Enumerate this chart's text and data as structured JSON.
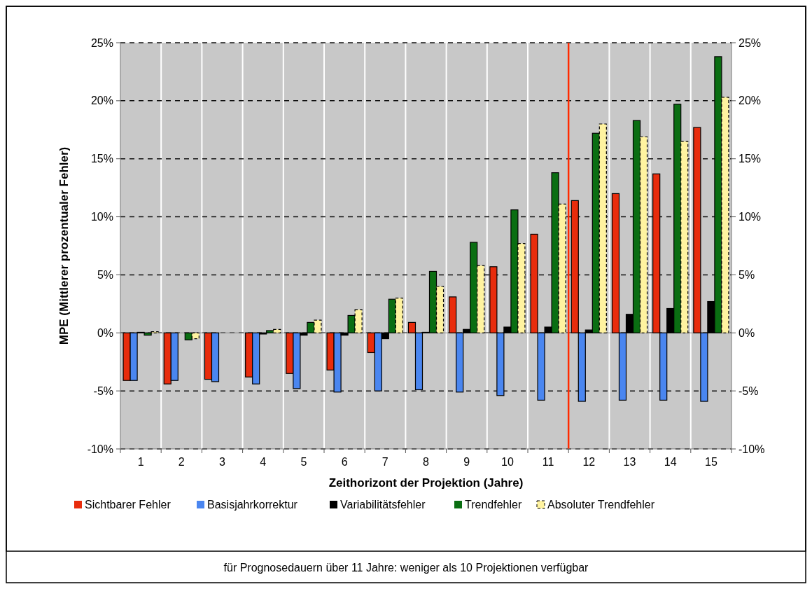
{
  "chart_data": {
    "type": "bar",
    "xlabel": "Zeithorizont der Projektion (Jahre)",
    "ylabel": "MPE (Mittlerer prozentualer Fehler)",
    "x": [
      1,
      2,
      3,
      4,
      5,
      6,
      7,
      8,
      9,
      10,
      11,
      12,
      13,
      14,
      15
    ],
    "xlim": [
      0.5,
      15.5
    ],
    "xticks": [
      1,
      2,
      3,
      4,
      5,
      6,
      7,
      8,
      9,
      10,
      11,
      12,
      13,
      14,
      15
    ],
    "ylim": [
      -10,
      25
    ],
    "yticks": [
      {
        "value": -10,
        "label": "-10%"
      },
      {
        "value": -5,
        "label": "-5%"
      },
      {
        "value": 0,
        "label": "0%"
      },
      {
        "value": 5,
        "label": "5%"
      },
      {
        "value": 10,
        "label": "10%"
      },
      {
        "value": 15,
        "label": "15%"
      },
      {
        "value": 20,
        "label": "20%"
      },
      {
        "value": 25,
        "label": "25%"
      }
    ],
    "y2lim": [
      -10,
      25
    ],
    "y2ticks": [
      {
        "value": -10,
        "label": "-10%"
      },
      {
        "value": -5,
        "label": "-5%"
      },
      {
        "value": 0,
        "label": "0%"
      },
      {
        "value": 5,
        "label": "5%"
      },
      {
        "value": 10,
        "label": "10%"
      },
      {
        "value": 15,
        "label": "15%"
      },
      {
        "value": 20,
        "label": "20%"
      },
      {
        "value": 25,
        "label": "25%"
      }
    ],
    "series": [
      {
        "name": "Sichtbarer Fehler",
        "color": "#e82c0c",
        "values": [
          -4.1,
          -4.4,
          -4.0,
          -3.8,
          -3.5,
          -3.2,
          -1.7,
          0.9,
          3.1,
          5.7,
          8.5,
          11.4,
          12.0,
          13.7,
          17.7
        ]
      },
      {
        "name": "Basisjahrkorrektur",
        "color": "#4a86f0",
        "values": [
          -4.1,
          -4.1,
          -4.2,
          -4.4,
          -4.8,
          -5.1,
          -5.0,
          -4.9,
          -5.1,
          -5.4,
          -5.8,
          -5.9,
          -5.8,
          -5.8,
          -5.9
        ]
      },
      {
        "name": "Variabilitätsfehler",
        "color": "#000000",
        "values": [
          0.05,
          0,
          0,
          -0.1,
          -0.2,
          -0.2,
          -0.5,
          0.05,
          0.3,
          0.5,
          0.5,
          0.25,
          1.6,
          2.1,
          2.7
        ]
      },
      {
        "name": "Trendfehler",
        "color": "#0a6e12",
        "values": [
          -0.2,
          -0.6,
          0,
          0.2,
          0.9,
          1.5,
          2.9,
          5.3,
          7.8,
          10.6,
          13.8,
          17.2,
          18.3,
          19.7,
          23.8
        ]
      },
      {
        "name": "Absoluter Trendfehler",
        "color": "#fff3a0",
        "line_style": "dashed",
        "values": [
          0.1,
          -0.5,
          0,
          0.3,
          1.1,
          2.0,
          3.0,
          4.0,
          5.8,
          7.7,
          11.1,
          18.0,
          16.9,
          16.5,
          20.3
        ]
      }
    ],
    "ref_lines": [
      {
        "axis": "x",
        "value": 11.5,
        "color": "#ff2a00"
      }
    ],
    "grid": true,
    "legend": "bottom",
    "annotations": [
      "für Prognosedauern über 11 Jahre: weniger als 10 Projektionen verfügbar"
    ]
  }
}
